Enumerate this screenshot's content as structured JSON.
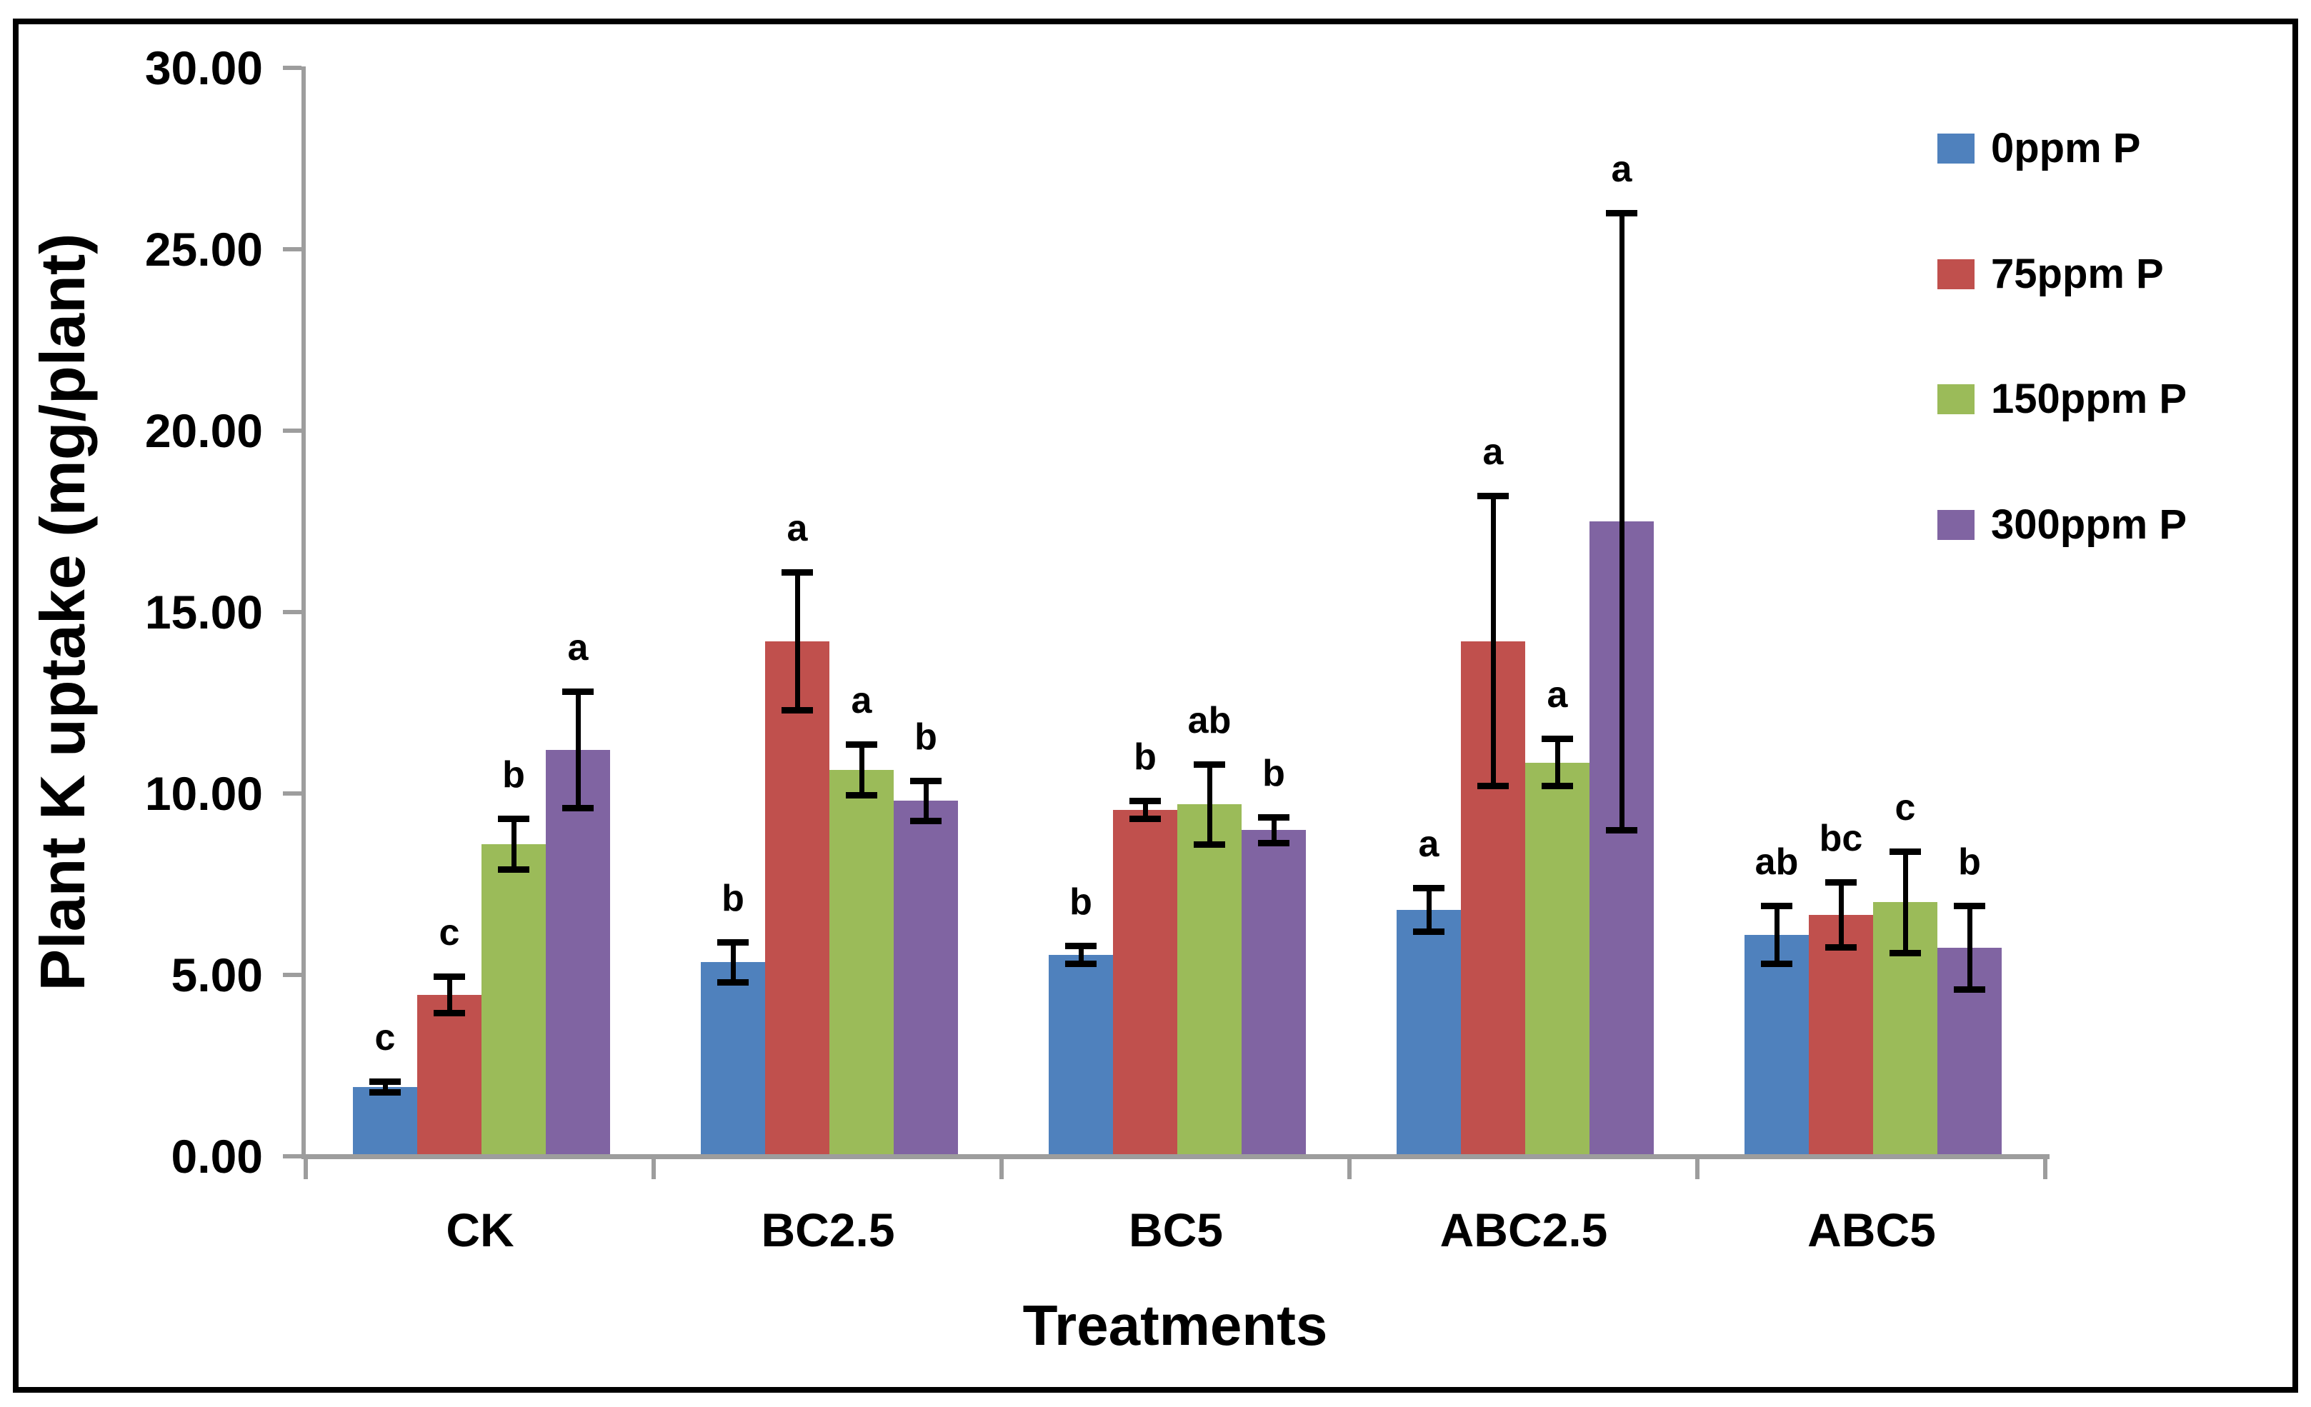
{
  "figure": {
    "background": "#ffffff",
    "border_color": "#000000"
  },
  "chart_data": {
    "type": "bar",
    "title": "",
    "xlabel": "Treatments",
    "ylabel": "Plant K uptake (mg/plant)",
    "ylim": [
      0,
      30
    ],
    "ytick_step": 5,
    "ytick_labels": [
      "30.00",
      "25.00",
      "20.00",
      "15.00",
      "10.00",
      "5.00",
      "0.00"
    ],
    "grid": false,
    "legend_position": "upper-right",
    "legend_marker": "square",
    "axis_color": "#9d9d9d",
    "error_bar_color": "#000000",
    "sig_letter_color": "#000000",
    "categories": [
      "CK",
      "BC2.5",
      "BC5",
      "ABC2.5",
      "ABC5"
    ],
    "series": [
      {
        "name": "0ppm P",
        "color": "#4F81BD",
        "values": [
          1.9,
          5.35,
          5.55,
          6.8,
          6.1
        ],
        "errors": [
          0.15,
          0.55,
          0.25,
          0.6,
          0.8
        ],
        "letters": [
          "c",
          "b",
          "b",
          "a",
          "ab"
        ]
      },
      {
        "name": "75ppm P",
        "color": "#C0504D",
        "values": [
          4.45,
          14.2,
          9.55,
          14.2,
          6.65
        ],
        "errors": [
          0.5,
          1.9,
          0.25,
          4.0,
          0.9
        ],
        "letters": [
          "c",
          "a",
          "b",
          "a",
          "bc"
        ]
      },
      {
        "name": "150ppm P",
        "color": "#9BBB59",
        "values": [
          8.6,
          10.65,
          9.7,
          10.85,
          7.0
        ],
        "errors": [
          0.7,
          0.7,
          1.1,
          0.65,
          1.4
        ],
        "letters": [
          "b",
          "a",
          "ab",
          "a",
          "c"
        ]
      },
      {
        "name": "300ppm P",
        "color": "#8064A2",
        "values": [
          11.2,
          9.8,
          9.0,
          17.5,
          5.75
        ],
        "errors": [
          1.6,
          0.55,
          0.35,
          8.5,
          1.15
        ],
        "letters": [
          "a",
          "b",
          "b",
          "a",
          "b"
        ]
      }
    ]
  }
}
